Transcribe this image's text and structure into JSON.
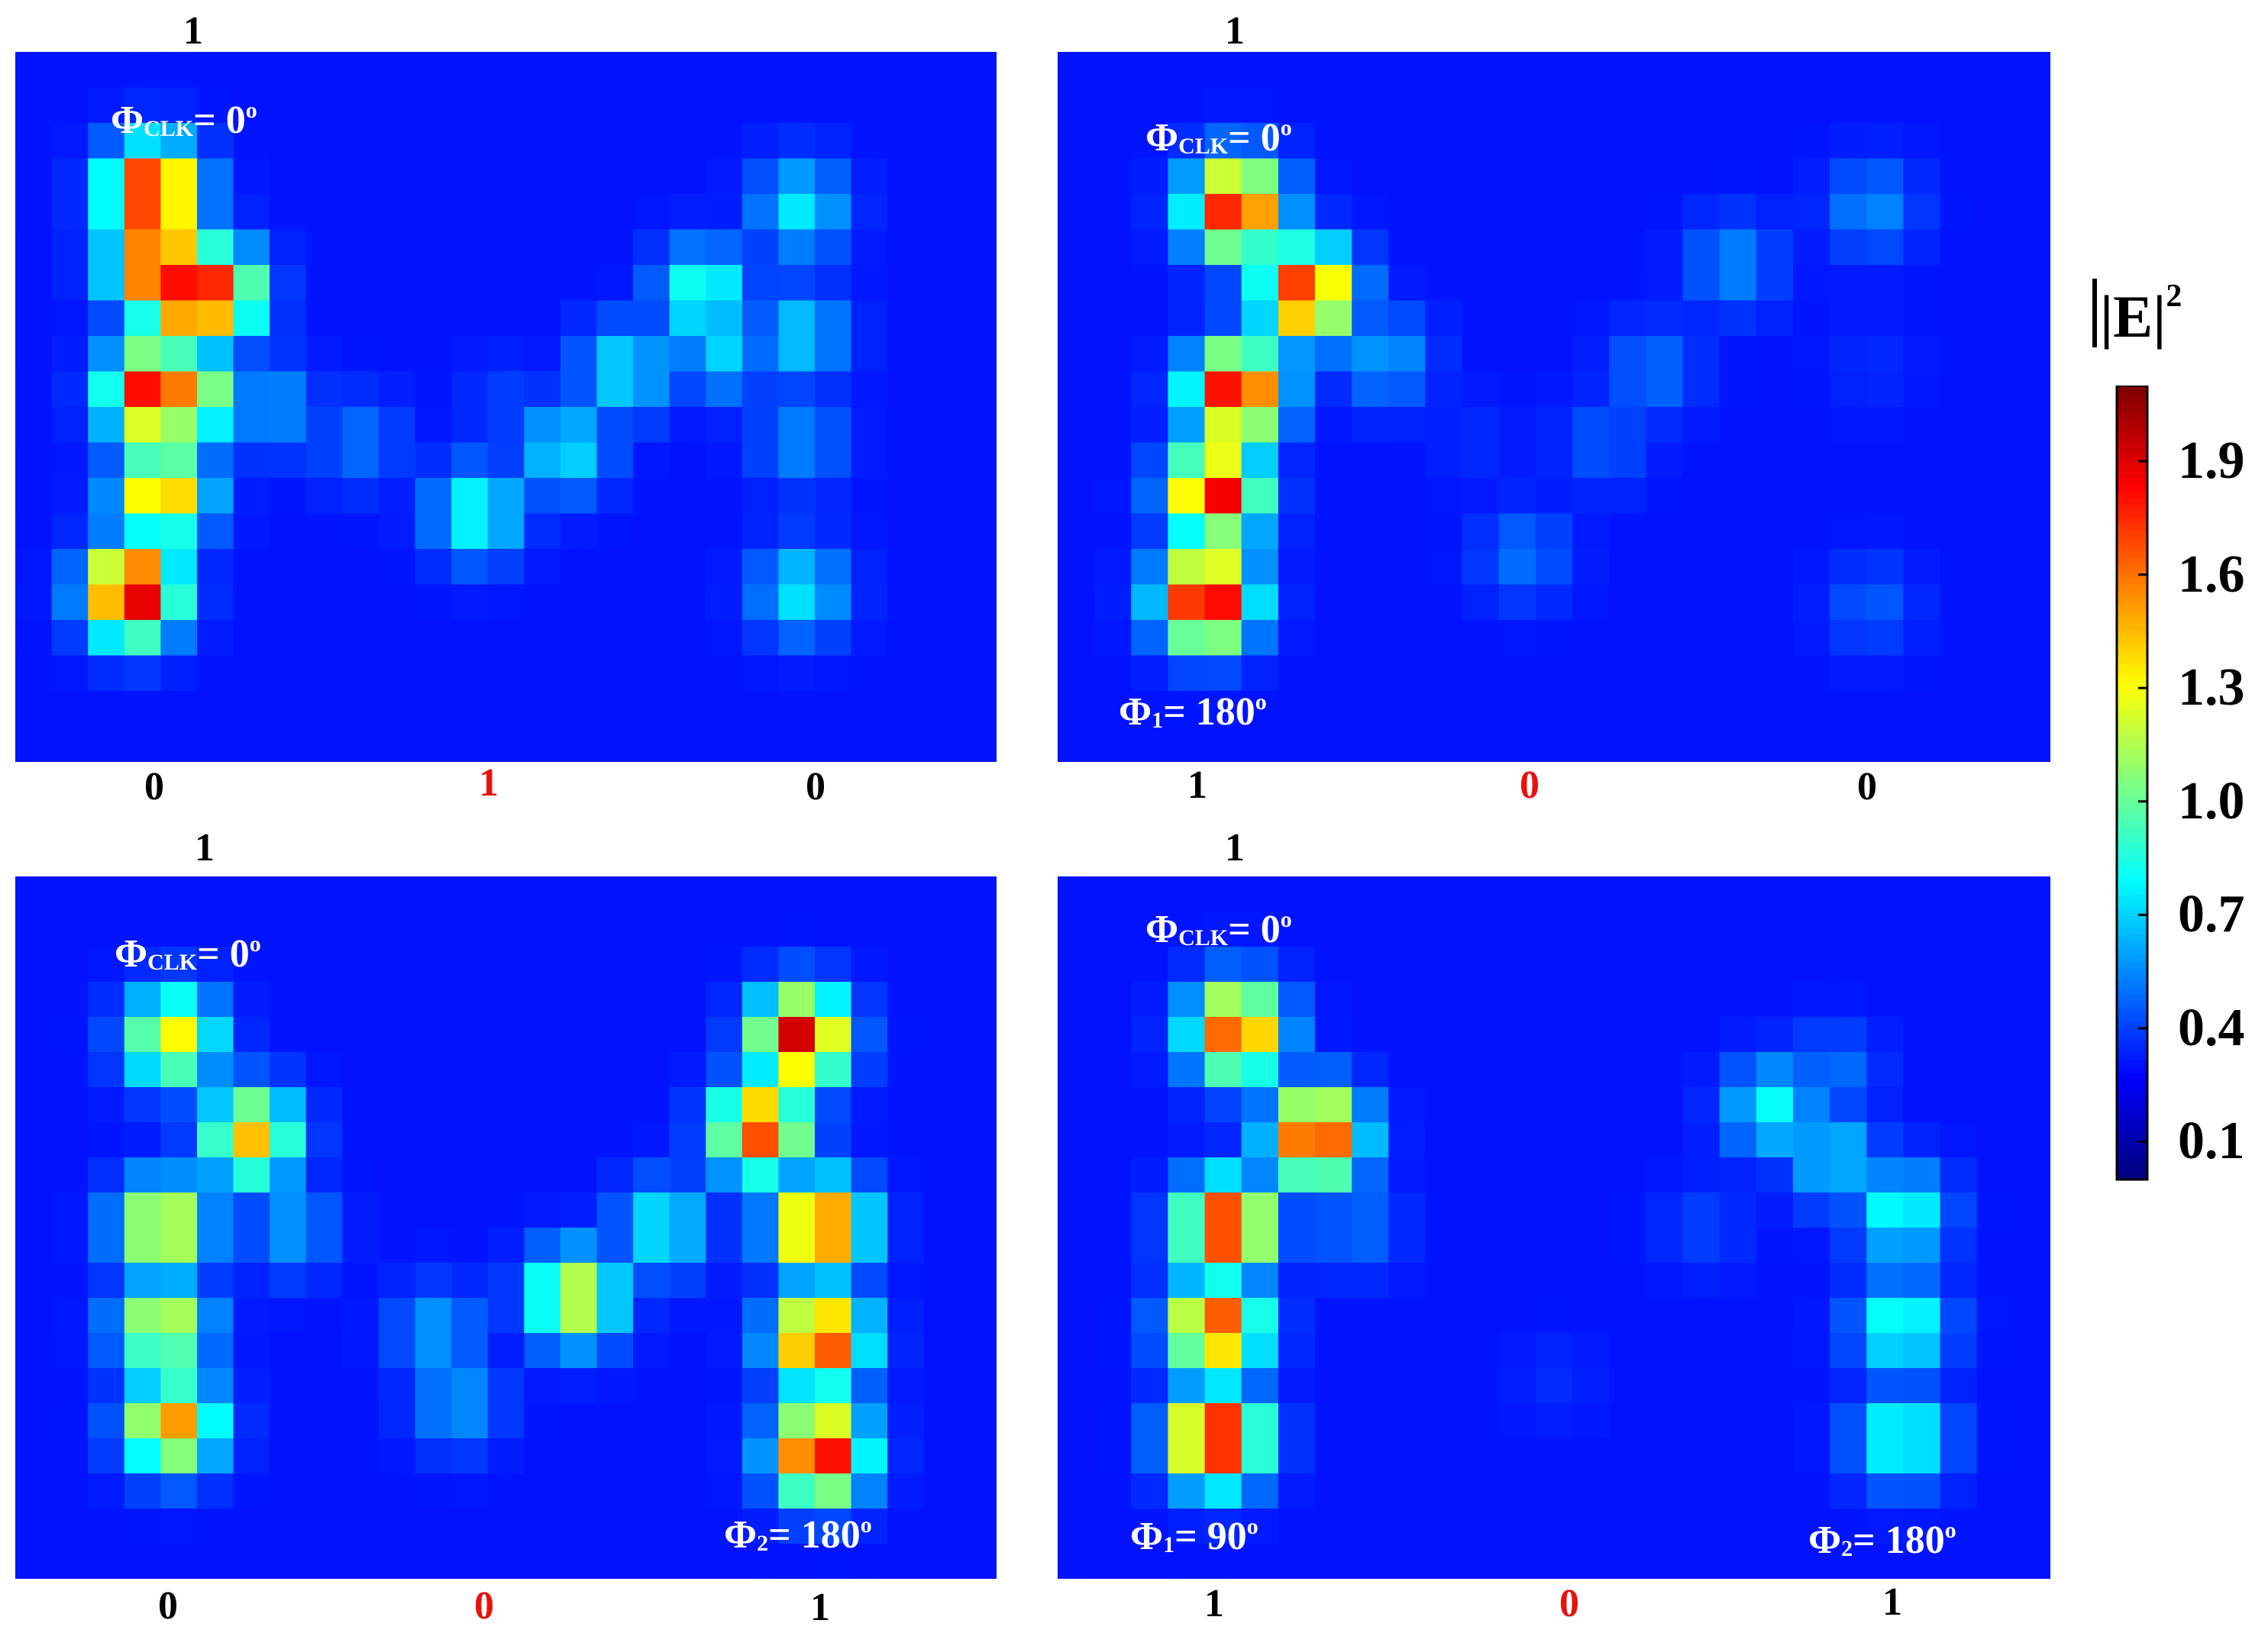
{
  "chart_data": {
    "type": "heatmap",
    "colorbar": {
      "title": "|E|",
      "title_exponent": "2",
      "min": 0.0,
      "max": 2.1,
      "ticks": [
        "1.9",
        "1.6",
        "1.3",
        "1.0",
        "0.7",
        "0.4",
        "0.1"
      ],
      "colormap": "jet"
    },
    "panels": [
      {
        "id": "top-left",
        "top_label": "1",
        "bottom_labels": [
          {
            "text": "0",
            "color": "#000000"
          },
          {
            "text": "1",
            "color": "#e8110c"
          },
          {
            "text": "0",
            "color": "#000000"
          }
        ],
        "notes": [
          {
            "phi": "Φ",
            "sub": "CLK",
            "value": "= 0",
            "sup": "o"
          }
        ],
        "spots": [
          [
            0.14,
            0.2,
            2.0
          ],
          [
            0.145,
            0.3,
            1.95
          ],
          [
            0.17,
            0.34,
            1.9
          ],
          [
            0.2,
            0.34,
            1.85
          ],
          [
            0.14,
            0.48,
            1.9
          ],
          [
            0.17,
            0.48,
            1.6
          ],
          [
            0.15,
            0.62,
            1.55
          ],
          [
            0.12,
            0.76,
            2.05
          ],
          [
            0.26,
            0.5,
            0.6
          ],
          [
            0.35,
            0.55,
            0.5
          ],
          [
            0.47,
            0.65,
            0.85
          ],
          [
            0.56,
            0.56,
            0.75
          ],
          [
            0.62,
            0.45,
            0.75
          ],
          [
            0.7,
            0.34,
            0.9
          ],
          [
            0.72,
            0.42,
            0.7
          ],
          [
            0.8,
            0.22,
            0.75
          ],
          [
            0.8,
            0.4,
            0.7
          ],
          [
            0.8,
            0.55,
            0.55
          ],
          [
            0.8,
            0.76,
            0.75
          ],
          [
            0.5,
            0.5,
            0.4
          ]
        ]
      },
      {
        "id": "top-right",
        "top_label": "1",
        "bottom_labels": [
          {
            "text": "1",
            "color": "#000000"
          },
          {
            "text": "0",
            "color": "#e8110c"
          },
          {
            "text": "0",
            "color": "#000000"
          }
        ],
        "notes": [
          {
            "phi": "Φ",
            "sub": "CLK",
            "value": "= 0",
            "sup": "o"
          },
          {
            "phi": "Φ",
            "sub": "1",
            "value": "= 180",
            "sup": "o"
          }
        ],
        "spots": [
          [
            0.18,
            0.22,
            1.9
          ],
          [
            0.25,
            0.34,
            1.85
          ],
          [
            0.18,
            0.48,
            1.95
          ],
          [
            0.16,
            0.62,
            1.9
          ],
          [
            0.15,
            0.77,
            2.05
          ],
          [
            0.33,
            0.43,
            0.6
          ],
          [
            0.42,
            0.55,
            0.35
          ],
          [
            0.47,
            0.71,
            0.5
          ],
          [
            0.55,
            0.55,
            0.45
          ],
          [
            0.6,
            0.45,
            0.5
          ],
          [
            0.68,
            0.3,
            0.55
          ],
          [
            0.82,
            0.22,
            0.55
          ],
          [
            0.82,
            0.44,
            0.35
          ],
          [
            0.82,
            0.78,
            0.45
          ]
        ]
      },
      {
        "id": "bottom-left",
        "top_label": "1",
        "bottom_labels": [
          {
            "text": "0",
            "color": "#000000"
          },
          {
            "text": "0",
            "color": "#e8110c"
          },
          {
            "text": "1",
            "color": "#000000"
          }
        ],
        "notes": [
          {
            "phi": "Φ",
            "sub": "CLK",
            "value": "= 0",
            "sup": "o"
          },
          {
            "phi": "Φ",
            "sub": "2",
            "value": "= 180",
            "sup": "o"
          }
        ],
        "spots": [
          [
            0.16,
            0.23,
            1.35
          ],
          [
            0.24,
            0.37,
            1.45
          ],
          [
            0.15,
            0.5,
            1.4
          ],
          [
            0.15,
            0.64,
            1.3
          ],
          [
            0.16,
            0.78,
            1.55
          ],
          [
            0.28,
            0.5,
            0.6
          ],
          [
            0.43,
            0.65,
            0.6
          ],
          [
            0.45,
            0.75,
            0.6
          ],
          [
            0.57,
            0.6,
            1.3
          ],
          [
            0.66,
            0.5,
            0.8
          ],
          [
            0.8,
            0.23,
            1.95
          ],
          [
            0.76,
            0.36,
            1.75
          ],
          [
            0.82,
            0.5,
            1.8
          ],
          [
            0.82,
            0.66,
            1.85
          ],
          [
            0.82,
            0.82,
            1.95
          ]
        ]
      },
      {
        "id": "bottom-right",
        "top_label": "1",
        "bottom_labels": [
          {
            "text": "1",
            "color": "#000000"
          },
          {
            "text": "0",
            "color": "#e8110c"
          },
          {
            "text": "1",
            "color": "#000000"
          }
        ],
        "notes": [
          {
            "phi": "Φ",
            "sub": "CLK",
            "value": "= 0",
            "sup": "o"
          },
          {
            "phi": "Φ",
            "sub": "1",
            "value": "= 90",
            "sup": "o"
          },
          {
            "phi": "Φ",
            "sub": "2",
            "value": "= 180",
            "sup": "o"
          }
        ],
        "spots": [
          [
            0.18,
            0.22,
            1.75
          ],
          [
            0.26,
            0.37,
            1.85
          ],
          [
            0.17,
            0.5,
            1.9
          ],
          [
            0.16,
            0.64,
            1.75
          ],
          [
            0.16,
            0.8,
            2.0
          ],
          [
            0.3,
            0.5,
            0.5
          ],
          [
            0.5,
            0.72,
            0.35
          ],
          [
            0.65,
            0.5,
            0.4
          ],
          [
            0.72,
            0.33,
            0.8
          ],
          [
            0.78,
            0.4,
            0.7
          ],
          [
            0.85,
            0.48,
            0.85
          ],
          [
            0.85,
            0.64,
            0.9
          ],
          [
            0.85,
            0.8,
            0.9
          ],
          [
            0.78,
            0.28,
            0.5
          ]
        ]
      }
    ]
  }
}
